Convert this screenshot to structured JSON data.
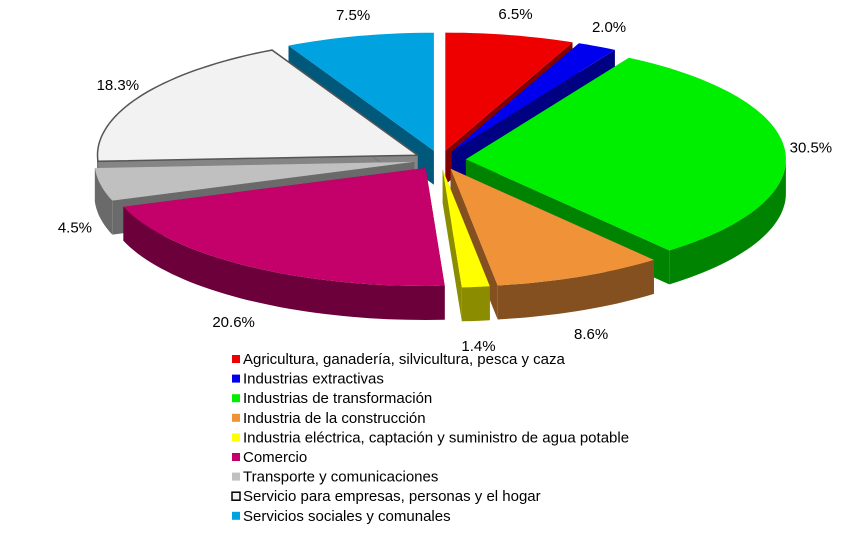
{
  "chart_data": {
    "type": "pie",
    "categories": [
      "Agricultura, ganadería, silvicultura, pesca y caza",
      "Industrias extractivas",
      "Industrias de transformación",
      "Industria de la construcción",
      "Industria eléctrica, captación y suministro de agua potable",
      "Comercio",
      "Transporte y comunicaciones",
      "Servicio para empresas, personas y el hogar",
      "Servicios sociales y comunales"
    ],
    "values": [
      6.5,
      2.0,
      30.5,
      8.6,
      1.4,
      20.6,
      4.5,
      18.3,
      7.5
    ],
    "value_labels": [
      "6.5%",
      "2.0%",
      "30.5%",
      "8.6%",
      "1.4%",
      "20.6%",
      "4.5%",
      "18.3%",
      "7.5%"
    ],
    "colors": [
      "#ee0000",
      "#0000ee",
      "#00ee00",
      "#f09238",
      "#ffff00",
      "#c4006a",
      "#c0c0c0",
      "#f2f2f2",
      "#00a2e0"
    ]
  }
}
